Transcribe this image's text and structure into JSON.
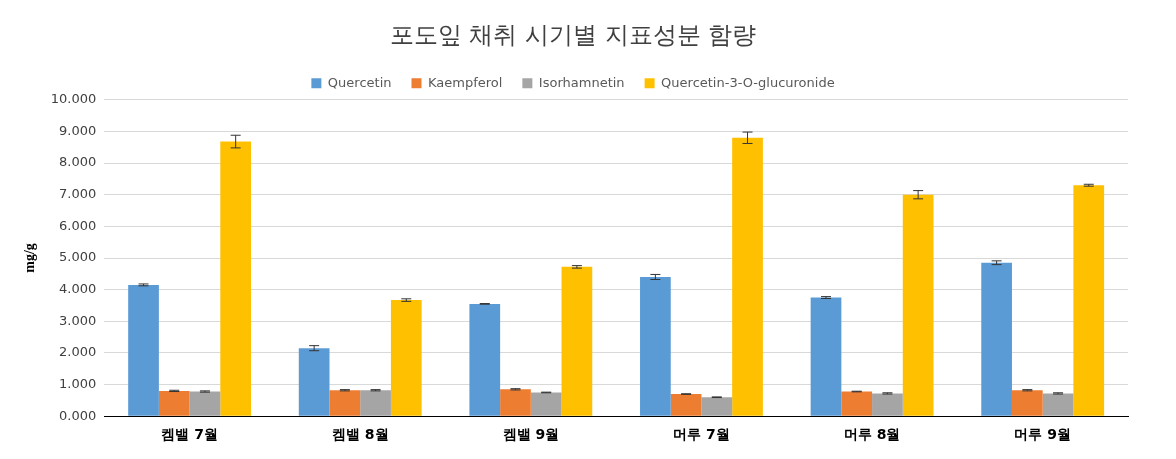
{
  "chart_data": {
    "type": "bar",
    "title": "포도잎 채취 시기별 지표성분 함량",
    "ylabel": "mg/g",
    "categories": [
      "켐밸 7월",
      "켐밸 8월",
      "켐밸 9월",
      "머루 7월",
      "머루 8월",
      "머루 9월"
    ],
    "series": [
      {
        "name": "Quercetin",
        "color": "#5b9bd5",
        "values": [
          4.15,
          2.15,
          3.55,
          4.4,
          3.75,
          4.85
        ],
        "errors": [
          0.03,
          0.08,
          0.01,
          0.08,
          0.03,
          0.06
        ]
      },
      {
        "name": "Kaempferol",
        "color": "#ed7d31",
        "values": [
          0.8,
          0.82,
          0.85,
          0.7,
          0.78,
          0.82
        ],
        "errors": [
          0.02,
          0.02,
          0.02,
          0.01,
          0.01,
          0.02
        ]
      },
      {
        "name": "Isorhamnetin",
        "color": "#a5a5a5",
        "values": [
          0.78,
          0.82,
          0.75,
          0.6,
          0.72,
          0.72
        ],
        "errors": [
          0.02,
          0.02,
          0.01,
          0.01,
          0.02,
          0.02
        ]
      },
      {
        "name": "Quercetin-3-O-glucuronide",
        "color": "#ffc000",
        "values": [
          8.68,
          3.67,
          4.72,
          8.8,
          7.0,
          7.3
        ],
        "errors": [
          0.2,
          0.04,
          0.04,
          0.18,
          0.13,
          0.03
        ]
      }
    ],
    "ylim": [
      0,
      10
    ],
    "yticks": [
      {
        "value": 0,
        "label": "0.000"
      },
      {
        "value": 1,
        "label": "1.000"
      },
      {
        "value": 2,
        "label": "2.000"
      },
      {
        "value": 3,
        "label": "3.000"
      },
      {
        "value": 4,
        "label": "4.000"
      },
      {
        "value": 5,
        "label": "5.000"
      },
      {
        "value": 6,
        "label": "6.000"
      },
      {
        "value": 7,
        "label": "7.000"
      },
      {
        "value": 8,
        "label": "8.000"
      },
      {
        "value": 9,
        "label": "9.000"
      },
      {
        "value": 10,
        "label": "10.000"
      }
    ],
    "grid": "y",
    "legend": "top"
  }
}
